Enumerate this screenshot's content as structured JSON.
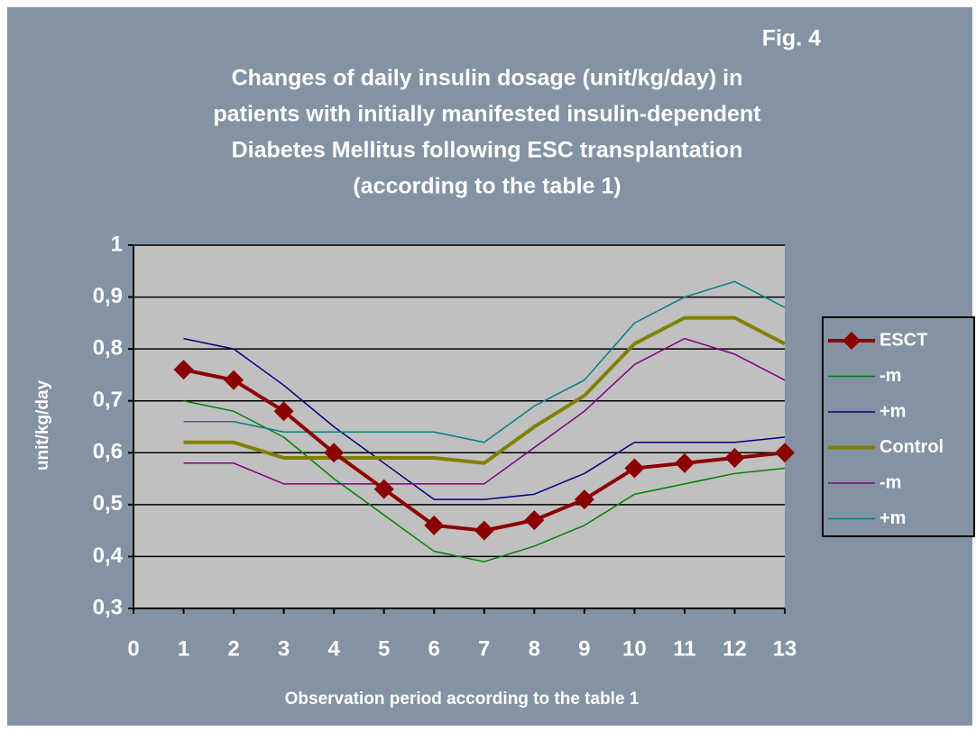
{
  "chart_data": {
    "type": "line",
    "figure_label": "Fig. 4",
    "title_lines": [
      "Changes of daily insulin dosage (unit/kg/day)  in",
      "patients with initially manifested insulin-dependent",
      "Diabetes Mellitus following ESC transplantation",
      "(according to the table 1)"
    ],
    "x_label": "Observation period according to the table 1",
    "y_label": "unit/kg/day",
    "x": [
      1,
      2,
      3,
      4,
      5,
      6,
      7,
      8,
      9,
      10,
      11,
      12,
      13
    ],
    "xlim": [
      0,
      13
    ],
    "xticks": [
      0,
      1,
      2,
      3,
      4,
      5,
      6,
      7,
      8,
      9,
      10,
      11,
      12,
      13
    ],
    "ylim": [
      0.3,
      1
    ],
    "yticks": [
      {
        "value": 0.3,
        "label": "0,3"
      },
      {
        "value": 0.4,
        "label": "0,4"
      },
      {
        "value": 0.5,
        "label": "0,5"
      },
      {
        "value": 0.6,
        "label": "0,6"
      },
      {
        "value": 0.7,
        "label": "0,7"
      },
      {
        "value": 0.8,
        "label": "0,8"
      },
      {
        "value": 0.9,
        "label": "0,9"
      },
      {
        "value": 1,
        "label": "1"
      }
    ],
    "grid": true,
    "legend": "right",
    "series": [
      {
        "name": "ESCT",
        "color": "#8b0000",
        "marker": "diamond",
        "values": [
          0.76,
          0.74,
          0.68,
          0.6,
          0.53,
          0.46,
          0.45,
          0.47,
          0.51,
          0.57,
          0.58,
          0.59,
          0.6
        ]
      },
      {
        "name": "-m",
        "color": "#008000",
        "values": [
          0.7,
          0.68,
          0.63,
          0.55,
          0.48,
          0.41,
          0.39,
          0.42,
          0.46,
          0.52,
          0.54,
          0.56,
          0.57
        ]
      },
      {
        "name": "+m",
        "color": "#000080",
        "values": [
          0.82,
          0.8,
          0.73,
          0.65,
          0.58,
          0.51,
          0.51,
          0.52,
          0.56,
          0.62,
          0.62,
          0.62,
          0.63
        ]
      },
      {
        "name": "Control",
        "color": "#808000",
        "values": [
          0.62,
          0.62,
          0.59,
          0.59,
          0.59,
          0.59,
          0.58,
          0.65,
          0.71,
          0.81,
          0.86,
          0.86,
          0.81
        ]
      },
      {
        "name": "-m",
        "color": "#800080",
        "values": [
          0.58,
          0.58,
          0.54,
          0.54,
          0.54,
          0.54,
          0.54,
          0.61,
          0.68,
          0.77,
          0.82,
          0.79,
          0.74
        ]
      },
      {
        "name": "+m",
        "color": "#008080",
        "values": [
          0.66,
          0.66,
          0.64,
          0.64,
          0.64,
          0.64,
          0.62,
          0.69,
          0.74,
          0.85,
          0.9,
          0.93,
          0.88
        ]
      }
    ]
  }
}
